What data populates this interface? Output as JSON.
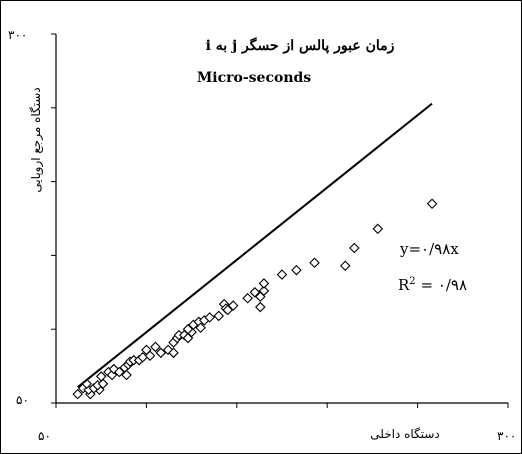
{
  "chart_data": {
    "type": "scatter",
    "title": "زمان عبور پالس از حسگر j به i",
    "subtitle": "Micro-seconds",
    "xlabel": "دستگاه داخلی",
    "ylabel": "دستگاه مرجع اروپایی",
    "xlim": [
      50,
      300
    ],
    "ylim": [
      50,
      300
    ],
    "x_tick_labels": [
      "۵۰",
      "۳۰۰"
    ],
    "y_tick_labels": [
      "۵۰",
      "۳۰۰"
    ],
    "grid": false,
    "legend": "none",
    "equation_label": "y=۰/۹۸x",
    "r2_label_prefix": "R",
    "r2_label_sup": "2",
    "r2_label_suffix": " = ۰/۹۸",
    "trendline": {
      "slope": 0.98,
      "x": [
        62,
        258
      ]
    },
    "points": [
      [
        62,
        56
      ],
      [
        65,
        60
      ],
      [
        69,
        56
      ],
      [
        68,
        59
      ],
      [
        74,
        59
      ],
      [
        71,
        60
      ],
      [
        67,
        63
      ],
      [
        73,
        62
      ],
      [
        76,
        63
      ],
      [
        75,
        68
      ],
      [
        79,
        71
      ],
      [
        81,
        69
      ],
      [
        82,
        73
      ],
      [
        85,
        71
      ],
      [
        88,
        74
      ],
      [
        90,
        76
      ],
      [
        91,
        78
      ],
      [
        93,
        79
      ],
      [
        89,
        69
      ],
      [
        96,
        79
      ],
      [
        98,
        81
      ],
      [
        100,
        86
      ],
      [
        102,
        82
      ],
      [
        105,
        88
      ],
      [
        108,
        84
      ],
      [
        112,
        86
      ],
      [
        115,
        91
      ],
      [
        117,
        94
      ],
      [
        115,
        84
      ],
      [
        118,
        96
      ],
      [
        121,
        96
      ],
      [
        123,
        94
      ],
      [
        125,
        98
      ],
      [
        123,
        100
      ],
      [
        126,
        103
      ],
      [
        129,
        105
      ],
      [
        130,
        101
      ],
      [
        132,
        106
      ],
      [
        135,
        108
      ],
      [
        140,
        109
      ],
      [
        143,
        117
      ],
      [
        144,
        114
      ],
      [
        145,
        113
      ],
      [
        148,
        116
      ],
      [
        156,
        121
      ],
      [
        160,
        125
      ],
      [
        163,
        122
      ],
      [
        165,
        126
      ],
      [
        163,
        115
      ],
      [
        165,
        131
      ],
      [
        175,
        137
      ],
      [
        183,
        140
      ],
      [
        193,
        145
      ],
      [
        210,
        143
      ],
      [
        215,
        155
      ],
      [
        228,
        168
      ],
      [
        258,
        185
      ]
    ]
  }
}
